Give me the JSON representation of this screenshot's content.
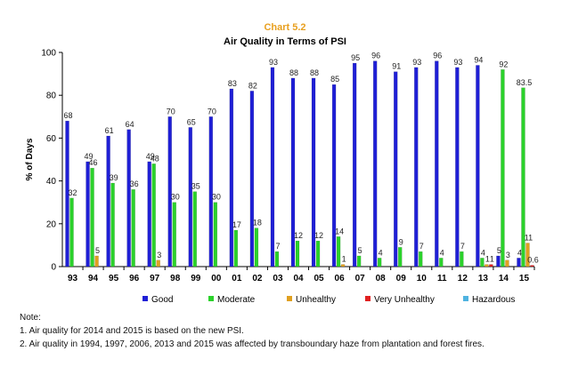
{
  "chart_data": {
    "type": "bar",
    "chart_number": "Chart 5.2",
    "title": "Air Quality in Terms of PSI",
    "xlabel": "",
    "ylabel": "% of Days",
    "ylim": [
      0,
      100
    ],
    "yticks": [
      0,
      20,
      40,
      60,
      80,
      100
    ],
    "grid": false,
    "legend_position": "bottom",
    "categories": [
      "93",
      "94",
      "95",
      "96",
      "97",
      "98",
      "99",
      "00",
      "01",
      "02",
      "03",
      "04",
      "05",
      "06",
      "07",
      "08",
      "09",
      "10",
      "11",
      "12",
      "13",
      "14",
      "15"
    ],
    "series": [
      {
        "name": "Good",
        "color": "#1f1fd6",
        "values": [
          68,
          49,
          61,
          64,
          49,
          70,
          65,
          70,
          83,
          82,
          93,
          88,
          88,
          85,
          95,
          96,
          91,
          93,
          96,
          93,
          94,
          5,
          4
        ],
        "labels": [
          "68",
          "49",
          "61",
          "64",
          "49",
          "70",
          "65",
          "70",
          "83",
          "82",
          "93",
          "88",
          "88",
          "85",
          "95",
          "96",
          "91",
          "93",
          "96",
          "93",
          "94",
          "5",
          "4"
        ]
      },
      {
        "name": "Moderate",
        "color": "#2bd22b",
        "values": [
          32,
          46,
          39,
          36,
          48,
          30,
          35,
          30,
          17,
          18,
          7,
          12,
          12,
          14,
          5,
          4,
          9,
          7,
          4,
          7,
          4,
          92,
          83.5
        ],
        "labels": [
          "32",
          "46",
          "39",
          "36",
          "48",
          "30",
          "35",
          "30",
          "17",
          "18",
          "7",
          "12",
          "12",
          "14",
          "5",
          "4",
          "9",
          "7",
          "4",
          "7",
          "4",
          "92",
          "83.5"
        ]
      },
      {
        "name": "Unhealthy",
        "color": "#e0a020",
        "values": [
          0,
          5,
          0,
          0,
          3,
          0,
          0,
          0,
          0,
          0,
          0,
          0,
          0,
          1,
          0,
          0,
          0,
          0,
          0,
          0,
          1,
          3,
          11
        ],
        "labels": [
          "",
          "5",
          "",
          "",
          "3",
          "",
          "",
          "",
          "",
          "",
          "",
          "",
          "",
          "1",
          "",
          "",
          "",
          "",
          "",
          "",
          "1",
          "3",
          "11"
        ]
      },
      {
        "name": "Very Unhealthy",
        "color": "#e02020",
        "values": [
          0,
          0,
          0,
          0,
          0,
          0,
          0,
          0,
          0,
          0,
          0,
          0,
          0,
          0,
          0,
          0,
          0,
          0,
          0,
          0,
          1,
          0,
          0.6
        ],
        "labels": [
          "",
          "",
          "",
          "",
          "",
          "",
          "",
          "",
          "",
          "",
          "",
          "",
          "",
          "",
          "",
          "",
          "",
          "",
          "",
          "",
          "1",
          "",
          "0.6"
        ]
      },
      {
        "name": "Hazardous",
        "color": "#4fb3e0",
        "values": [
          0,
          0,
          0,
          0,
          0,
          0,
          0,
          0,
          0,
          0,
          0,
          0,
          0,
          0,
          0,
          0,
          0,
          0,
          0,
          0,
          0,
          0,
          0
        ],
        "labels": [
          "",
          "",
          "",
          "",
          "",
          "",
          "",
          "",
          "",
          "",
          "",
          "",
          "",
          "",
          "",
          "",
          "",
          "",
          "",
          "",
          "",
          "",
          ""
        ]
      }
    ]
  },
  "notes": {
    "heading": "Note:",
    "line1": "1. Air quality for 2014 and 2015 is based on the new PSI.",
    "line2": "2. Air quality in 1994, 1997, 2006, 2013 and 2015 was affected by transboundary haze from plantation and forest fires."
  }
}
